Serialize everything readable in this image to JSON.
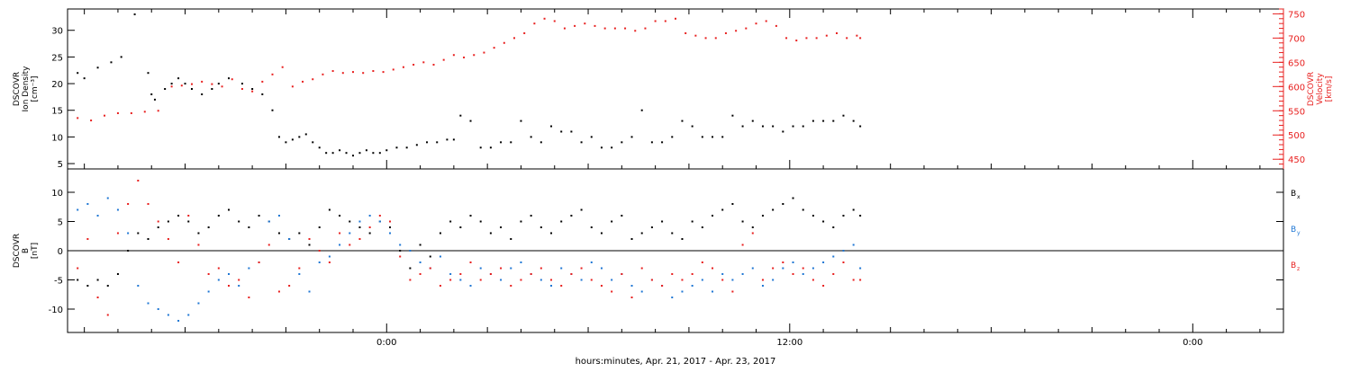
{
  "colors": {
    "black": "#000000",
    "red": "#e8201f",
    "blue": "#1f77d4",
    "axis": "#000000"
  },
  "chart_data": [
    {
      "type": "scatter",
      "panel": "top",
      "ylabel_left": [
        "DSCOVR",
        "Ion Density",
        "[cm⁻³]"
      ],
      "ylabel_right": [
        "DSCOVR",
        "Velocity",
        "[km/s]"
      ],
      "ylim_left": [
        4,
        34
      ],
      "yticks_left": [
        "5",
        "10",
        "15",
        "20",
        "25",
        "30"
      ],
      "ylim_right": [
        430,
        760
      ],
      "yticks_right": [
        "450",
        "500",
        "550",
        "600",
        "650",
        "700",
        "750"
      ],
      "series": [
        {
          "color": "black",
          "axis": "left",
          "x": [
            -9.2,
            -9.0,
            -8.6,
            -8.2,
            -7.9,
            -7.5,
            -7.1,
            -7.0,
            -6.9,
            -6.6,
            -6.4,
            -6.2,
            -6.0,
            -5.8,
            -5.5,
            -5.2,
            -5.0,
            -4.7,
            -4.3,
            -4.0,
            -3.7,
            -3.4,
            -3.2,
            -3.0,
            -2.8,
            -2.6,
            -2.4,
            -2.2,
            -2.0,
            -1.8,
            -1.6,
            -1.4,
            -1.2,
            -1.0,
            -0.8,
            -0.6,
            -0.4,
            -0.2,
            0.0,
            0.3,
            0.6,
            0.9,
            1.2,
            1.5,
            1.8,
            2.0,
            2.2,
            2.5,
            2.8,
            3.1,
            3.4,
            3.7,
            4.0,
            4.3,
            4.6,
            4.9,
            5.2,
            5.5,
            5.8,
            6.1,
            6.4,
            6.7,
            7.0,
            7.3,
            7.6,
            7.9,
            8.2,
            8.5,
            8.8,
            9.1,
            9.4,
            9.7,
            10.0,
            10.3,
            10.6,
            10.9,
            11.2,
            11.5,
            11.8,
            12.1,
            12.4,
            12.7,
            13.0,
            13.3,
            13.6,
            13.9,
            14.1
          ],
          "y": [
            22,
            21,
            23,
            24,
            25,
            33,
            22,
            18,
            17,
            19,
            20,
            21,
            20,
            19,
            18,
            19,
            20,
            21,
            20,
            19,
            18,
            15,
            10,
            9,
            9.5,
            10,
            10.5,
            9,
            8,
            7,
            7,
            7.5,
            7,
            6.5,
            7,
            7.5,
            7,
            7,
            7.5,
            8,
            8,
            8.5,
            9,
            9,
            9.5,
            9.5,
            14,
            13,
            8,
            8,
            9,
            9,
            13,
            10,
            9,
            12,
            11,
            11,
            9,
            10,
            8,
            8,
            9,
            10,
            15,
            9,
            9,
            10,
            13,
            12,
            10,
            10,
            10,
            14,
            12,
            13,
            12,
            12,
            11,
            12,
            12,
            13,
            13,
            13,
            14,
            13,
            12
          ]
        },
        {
          "color": "red",
          "axis": "right",
          "x": [
            -9.2,
            -8.8,
            -8.4,
            -8.0,
            -7.6,
            -7.2,
            -6.8,
            -6.4,
            -6.1,
            -5.8,
            -5.5,
            -5.2,
            -4.9,
            -4.6,
            -4.3,
            -4.0,
            -3.7,
            -3.4,
            -3.1,
            -2.8,
            -2.5,
            -2.2,
            -1.9,
            -1.6,
            -1.3,
            -1.0,
            -0.7,
            -0.4,
            -0.1,
            0.2,
            0.5,
            0.8,
            1.1,
            1.4,
            1.7,
            2.0,
            2.3,
            2.6,
            2.9,
            3.2,
            3.5,
            3.8,
            4.1,
            4.4,
            4.7,
            5.0,
            5.3,
            5.6,
            5.9,
            6.2,
            6.5,
            6.8,
            7.1,
            7.4,
            7.7,
            8.0,
            8.3,
            8.6,
            8.9,
            9.2,
            9.5,
            9.8,
            10.1,
            10.4,
            10.7,
            11.0,
            11.3,
            11.6,
            11.9,
            12.2,
            12.5,
            12.8,
            13.1,
            13.4,
            13.7,
            14.0,
            14.1
          ],
          "y": [
            535,
            530,
            540,
            545,
            545,
            548,
            550,
            600,
            602,
            605,
            610,
            605,
            600,
            615,
            595,
            590,
            610,
            625,
            640,
            600,
            610,
            615,
            625,
            632,
            628,
            630,
            628,
            632,
            630,
            635,
            640,
            645,
            650,
            645,
            655,
            665,
            660,
            665,
            670,
            680,
            690,
            700,
            710,
            730,
            740,
            735,
            720,
            725,
            730,
            725,
            720,
            720,
            720,
            715,
            720,
            735,
            735,
            740,
            710,
            705,
            700,
            700,
            710,
            715,
            720,
            730,
            735,
            725,
            700,
            695,
            700,
            700,
            705,
            710,
            700,
            705,
            700
          ]
        }
      ]
    },
    {
      "type": "scatter",
      "panel": "bottom",
      "ylabel_left": [
        "DSCOVR",
        "B",
        "[nT]"
      ],
      "ylim": [
        -14,
        14
      ],
      "yticks": [
        "-10",
        "-5",
        "0",
        "5",
        "10"
      ],
      "legend": [
        "B",
        "B",
        "B"
      ],
      "legend_subscripts": [
        "x",
        "y",
        "z"
      ],
      "series": [
        {
          "color": "black",
          "x": [
            -9.2,
            -8.9,
            -8.6,
            -8.3,
            -8.0,
            -7.7,
            -7.4,
            -7.1,
            -6.8,
            -6.5,
            -6.2,
            -5.9,
            -5.6,
            -5.3,
            -5.0,
            -4.7,
            -4.4,
            -4.1,
            -3.8,
            -3.5,
            -3.2,
            -2.9,
            -2.6,
            -2.3,
            -2.0,
            -1.7,
            -1.4,
            -1.1,
            -0.8,
            -0.5,
            -0.2,
            0.1,
            0.4,
            0.7,
            1.0,
            1.3,
            1.6,
            1.9,
            2.2,
            2.5,
            2.8,
            3.1,
            3.4,
            3.7,
            4.0,
            4.3,
            4.6,
            4.9,
            5.2,
            5.5,
            5.8,
            6.1,
            6.4,
            6.7,
            7.0,
            7.3,
            7.6,
            7.9,
            8.2,
            8.5,
            8.8,
            9.1,
            9.4,
            9.7,
            10.0,
            10.3,
            10.6,
            10.9,
            11.2,
            11.5,
            11.8,
            12.1,
            12.4,
            12.7,
            13.0,
            13.3,
            13.6,
            13.9,
            14.1
          ],
          "y": [
            -5,
            -6,
            -5,
            -6,
            -4,
            0,
            3,
            2,
            4,
            5,
            6,
            5,
            3,
            4,
            6,
            7,
            5,
            4,
            6,
            5,
            3,
            2,
            3,
            1,
            4,
            7,
            6,
            5,
            4,
            3,
            5,
            4,
            0,
            -3,
            1,
            -1,
            3,
            5,
            4,
            6,
            5,
            3,
            4,
            2,
            5,
            6,
            4,
            3,
            5,
            6,
            7,
            4,
            3,
            5,
            6,
            2,
            3,
            4,
            5,
            3,
            2,
            5,
            4,
            6,
            7,
            8,
            5,
            4,
            6,
            7,
            8,
            9,
            7,
            6,
            5,
            4,
            6,
            7,
            6
          ]
        },
        {
          "color": "blue",
          "x": [
            -9.2,
            -8.9,
            -8.6,
            -8.3,
            -8.0,
            -7.7,
            -7.4,
            -7.1,
            -6.8,
            -6.5,
            -6.2,
            -5.9,
            -5.6,
            -5.3,
            -5.0,
            -4.7,
            -4.4,
            -4.1,
            -3.8,
            -3.5,
            -3.2,
            -2.9,
            -2.6,
            -2.3,
            -2.0,
            -1.7,
            -1.4,
            -1.1,
            -0.8,
            -0.5,
            -0.2,
            0.1,
            0.4,
            0.7,
            1.0,
            1.3,
            1.6,
            1.9,
            2.2,
            2.5,
            2.8,
            3.1,
            3.4,
            3.7,
            4.0,
            4.3,
            4.6,
            4.9,
            5.2,
            5.5,
            5.8,
            6.1,
            6.4,
            6.7,
            7.0,
            7.3,
            7.6,
            7.9,
            8.2,
            8.5,
            8.8,
            9.1,
            9.4,
            9.7,
            10.0,
            10.3,
            10.6,
            10.9,
            11.2,
            11.5,
            11.8,
            12.1,
            12.4,
            12.7,
            13.0,
            13.3,
            13.6,
            13.9,
            14.1
          ],
          "y": [
            7,
            8,
            6,
            9,
            7,
            3,
            -6,
            -9,
            -10,
            -11,
            -12,
            -11,
            -9,
            -7,
            -5,
            -4,
            -6,
            -3,
            -2,
            5,
            6,
            2,
            -4,
            -7,
            -2,
            -1,
            1,
            3,
            5,
            6,
            5,
            3,
            1,
            0,
            -2,
            -3,
            -1,
            -4,
            -5,
            -6,
            -3,
            -4,
            -5,
            -3,
            -2,
            -4,
            -5,
            -6,
            -3,
            -4,
            -5,
            -2,
            -3,
            -5,
            -4,
            -6,
            -7,
            -5,
            -6,
            -8,
            -7,
            -6,
            -5,
            -7,
            -4,
            -5,
            -4,
            -3,
            -6,
            -5,
            -3,
            -2,
            -4,
            -3,
            -2,
            -1,
            0,
            1,
            -3
          ]
        },
        {
          "color": "red",
          "x": [
            -9.2,
            -8.9,
            -8.6,
            -8.3,
            -8.0,
            -7.7,
            -7.4,
            -7.1,
            -6.8,
            -6.5,
            -6.2,
            -5.9,
            -5.6,
            -5.3,
            -5.0,
            -4.7,
            -4.4,
            -4.1,
            -3.8,
            -3.5,
            -3.2,
            -2.9,
            -2.6,
            -2.3,
            -2.0,
            -1.7,
            -1.4,
            -1.1,
            -0.8,
            -0.5,
            -0.2,
            0.1,
            0.4,
            0.7,
            1.0,
            1.3,
            1.6,
            1.9,
            2.2,
            2.5,
            2.8,
            3.1,
            3.4,
            3.7,
            4.0,
            4.3,
            4.6,
            4.9,
            5.2,
            5.5,
            5.8,
            6.1,
            6.4,
            6.7,
            7.0,
            7.3,
            7.6,
            7.9,
            8.2,
            8.5,
            8.8,
            9.1,
            9.4,
            9.7,
            10.0,
            10.3,
            10.6,
            10.9,
            11.2,
            11.5,
            11.8,
            12.1,
            12.4,
            12.7,
            13.0,
            13.3,
            13.6,
            13.9,
            14.1
          ],
          "y": [
            -3,
            2,
            -8,
            -11,
            3,
            8,
            12,
            8,
            5,
            2,
            -2,
            6,
            1,
            -4,
            -3,
            -6,
            -5,
            -8,
            -2,
            1,
            -7,
            -6,
            -3,
            2,
            0,
            -2,
            3,
            1,
            2,
            4,
            6,
            5,
            -1,
            -5,
            -4,
            -3,
            -6,
            -5,
            -4,
            -2,
            -5,
            -4,
            -3,
            -6,
            -5,
            -4,
            -3,
            -5,
            -6,
            -4,
            -3,
            -5,
            -6,
            -7,
            -4,
            -8,
            -3,
            -5,
            -6,
            -4,
            -5,
            -4,
            -2,
            -3,
            -5,
            -7,
            1,
            3,
            -5,
            -3,
            -2,
            -4,
            -3,
            -5,
            -6,
            -4,
            -2,
            -5,
            -5
          ]
        }
      ]
    },
    {
      "type": "axis",
      "xlim": [
        -9.5,
        26.7
      ],
      "xtick_positions": [
        0,
        12,
        24
      ],
      "xtick_labels": [
        "0:00",
        "12:00",
        "0:00"
      ],
      "xlabel": "hours:minutes, Apr. 21, 2017 - Apr. 23, 2017"
    }
  ]
}
